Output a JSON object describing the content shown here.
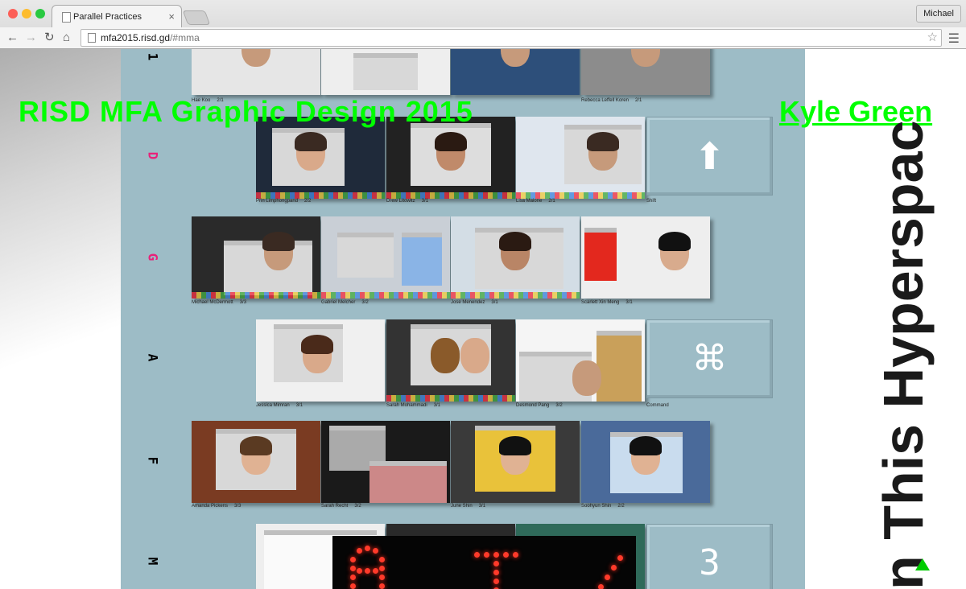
{
  "browser": {
    "tab_title": "Parallel Practices",
    "tab_close": "×",
    "profile_name": "Michael",
    "url_host": "mfa2015.risd.gd",
    "url_path": "/#mma"
  },
  "page": {
    "heading": "RISD MFA Graphic Design 2015",
    "author": "Kyle Green",
    "vertical_title": "n This Hyperspac",
    "accent_color": "#00ff00",
    "board_color": "#9dbcc6",
    "letter_color_highlight": "#e8227a"
  },
  "rows": [
    {
      "letter": "1",
      "letter_color": "#1a1a1a",
      "captions": [
        {
          "name": "Hae Koo",
          "count": "2/1"
        },
        {
          "name": "",
          "count": ""
        },
        {
          "name": "",
          "count": ""
        },
        {
          "name": "Rebecca Leffell Koren",
          "count": "2/1"
        }
      ]
    },
    {
      "letter": "D",
      "letter_color": "#e8227a",
      "captions": [
        {
          "name": "Prin Limphongpand",
          "count": "2/2"
        },
        {
          "name": "Drew Litowitz",
          "count": "3/1"
        },
        {
          "name": "Lisa Maione",
          "count": "2/1"
        }
      ],
      "key": {
        "symbol": "⬆",
        "label": "Shift"
      }
    },
    {
      "letter": "G",
      "letter_color": "#e8227a",
      "captions": [
        {
          "name": "Michael McDermott",
          "count": "3/3"
        },
        {
          "name": "Gabriel Melcher",
          "count": "3/2"
        },
        {
          "name": "Jose Menendez",
          "count": "3/1"
        },
        {
          "name": "Scarlett Xin Meng",
          "count": "3/1"
        }
      ]
    },
    {
      "letter": "A",
      "letter_color": "#1a1a1a",
      "captions": [
        {
          "name": "Jessica Mimran",
          "count": "3/1"
        },
        {
          "name": "Sarah Mohammadi",
          "count": "3/1"
        },
        {
          "name": "Desmond Pang",
          "count": "3/2"
        }
      ],
      "key": {
        "symbol": "⌘",
        "label": "Command"
      }
    },
    {
      "letter": "F",
      "letter_color": "#1a1a1a",
      "captions": [
        {
          "name": "Amanda Pickens",
          "count": "3/3"
        },
        {
          "name": "Sarah Recht",
          "count": "3/2"
        },
        {
          "name": "June Shin",
          "count": "3/1"
        },
        {
          "name": "Soohyun Shin",
          "count": "2/2"
        }
      ]
    },
    {
      "letter": "M",
      "letter_color": "#1a1a1a",
      "key": {
        "symbol": "3",
        "label": ""
      }
    }
  ]
}
